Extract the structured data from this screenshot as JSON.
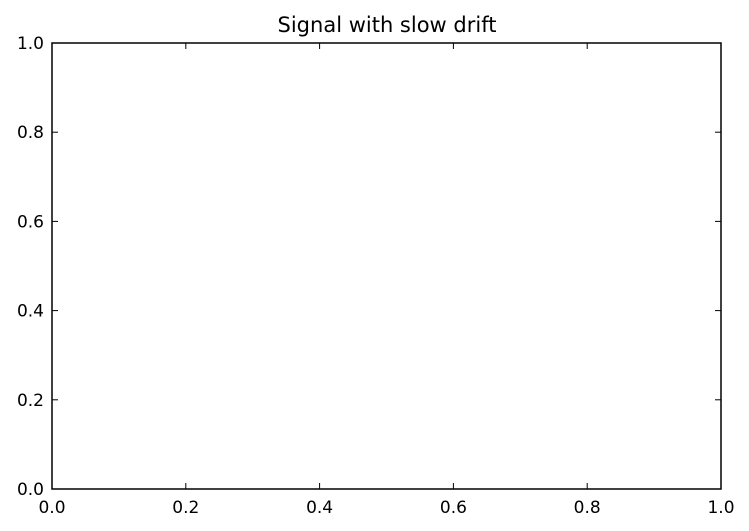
{
  "chart_data": {
    "type": "line",
    "title": "Signal with slow drift",
    "xlabel": "",
    "ylabel": "",
    "xlim": [
      0.0,
      1.0
    ],
    "ylim": [
      0.0,
      1.0
    ],
    "x_ticks": [
      "0.0",
      "0.2",
      "0.4",
      "0.6",
      "0.8",
      "1.0"
    ],
    "y_ticks": [
      "0.0",
      "0.2",
      "0.4",
      "0.6",
      "0.8",
      "1.0"
    ],
    "grid": false,
    "series": []
  }
}
